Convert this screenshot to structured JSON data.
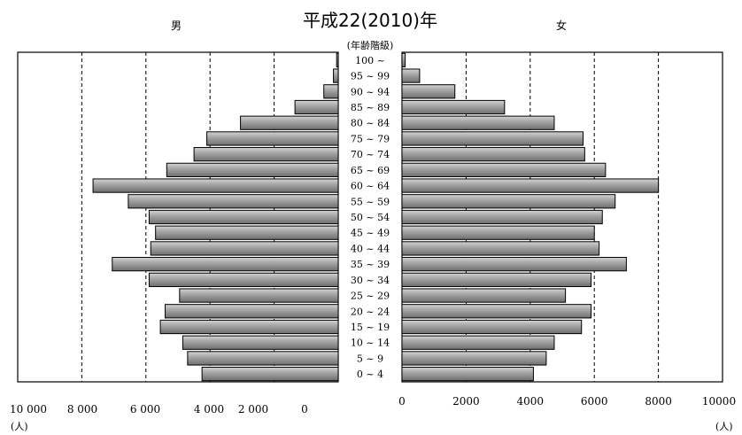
{
  "chart_data": {
    "type": "population_pyramid",
    "title": "平成22(2010)年",
    "male_label": "男",
    "female_label": "女",
    "age_axis_label": "(年齢階級)",
    "unit_label": "(人)",
    "male_ticks": [
      "10 000",
      "8 000",
      "6 000",
      "4 000",
      "2 000",
      "0"
    ],
    "female_ticks": [
      "0",
      "2000",
      "4000",
      "6000",
      "8000",
      "10000"
    ],
    "xlim": [
      0,
      10000
    ],
    "grid": "dashed vertical",
    "age_groups": [
      "0 ~ 4",
      "5 ~ 9",
      "10 ~ 14",
      "15 ~ 19",
      "20 ~ 24",
      "25 ~ 29",
      "30 ~ 34",
      "35 ~ 39",
      "40 ~ 44",
      "45 ~ 49",
      "50 ~ 54",
      "55 ~ 59",
      "60 ~ 64",
      "65 ~ 69",
      "70 ~ 74",
      "75 ~ 79",
      "80 ~ 84",
      "85 ~ 89",
      "90 ~ 94",
      "95 ~ 99",
      "100 ~"
    ],
    "male": [
      4250,
      4700,
      4850,
      5550,
      5400,
      4950,
      5900,
      7050,
      5850,
      5700,
      5900,
      6550,
      7650,
      5350,
      4500,
      4100,
      3050,
      1350,
      450,
      150,
      50
    ],
    "female": [
      4100,
      4500,
      4750,
      5600,
      5900,
      5100,
      5900,
      7000,
      6150,
      6000,
      6250,
      6650,
      8000,
      6350,
      5700,
      5650,
      4750,
      3200,
      1650,
      550,
      100
    ],
    "bar_color": "#9a9a9a"
  }
}
